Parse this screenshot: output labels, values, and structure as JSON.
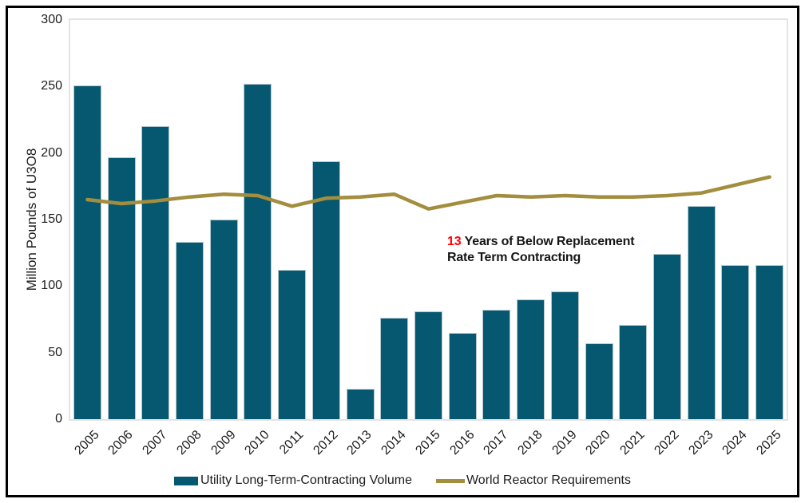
{
  "chart_data": {
    "type": "combo_bar_line",
    "title": "",
    "categories": [
      "2005",
      "2006",
      "2007",
      "2008",
      "2009",
      "2010",
      "2011",
      "2012",
      "2013",
      "2014",
      "2015",
      "2016",
      "2017",
      "2018",
      "2019",
      "2020",
      "2021",
      "2022",
      "2023",
      "2024",
      "2025"
    ],
    "series": [
      {
        "name": "Utility Long-Term-Contracting Volume",
        "type": "bar",
        "color": "#05586f",
        "border_color": "#b3c6d0",
        "values": [
          251,
          197,
          220,
          133,
          150,
          252,
          112,
          194,
          23,
          76,
          81,
          65,
          82,
          90,
          96,
          57,
          71,
          124,
          160,
          116,
          116
        ]
      },
      {
        "name": "World Reactor Requirements",
        "type": "line",
        "color": "#a38d3e",
        "stroke_width": 4.5,
        "values": [
          165,
          162,
          164,
          167,
          169,
          168,
          160,
          166,
          167,
          169,
          158,
          163,
          168,
          167,
          168,
          167,
          167,
          168,
          170,
          176,
          182
        ]
      }
    ],
    "xlabel": "",
    "ylabel": "Million Pounds of U3O8",
    "ylim": [
      0,
      300
    ],
    "yticks": [
      0,
      50,
      100,
      150,
      200,
      250,
      300
    ],
    "grid": false,
    "legend_position": "bottom",
    "axis_color": "#e4e4e4",
    "text_color": "#1c1c1c",
    "annotation": {
      "number": "13",
      "number_color": "#ff0000",
      "line1": "Years of Below Replacement",
      "line2": "Rate Term Contracting",
      "text_color": "#161616"
    }
  }
}
